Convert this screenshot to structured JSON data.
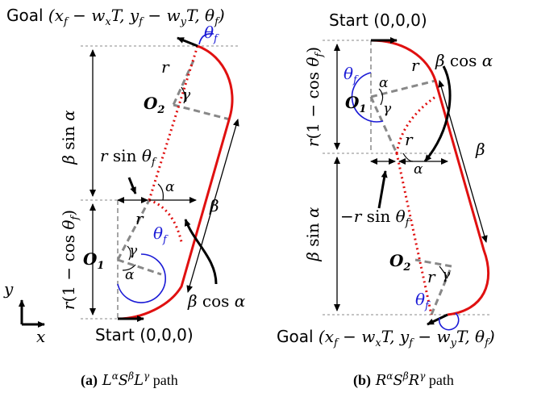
{
  "panel_a": {
    "goal_label": "Goal (x_f − w_xT, y_f − w_yT, θ_f)",
    "goal_prefix": "Goal",
    "goal_tuple": "(x",
    "start_label": "Start (0,0,0)",
    "theta_f": "θf",
    "r": "r",
    "gamma": "γ",
    "alpha": "α",
    "o2": "O",
    "o2_sub": "2",
    "o1": "O",
    "o1_sub": "1",
    "beta_sin_alpha": "β sin α",
    "r_sin_theta": "r sin θf",
    "r_one_minus_cos": "r(1 − cos θf)",
    "beta": "β",
    "beta_cos_alpha": "β cos α",
    "caption_letter": "(a)",
    "caption_text": "LαSβLγ path"
  },
  "panel_b": {
    "start_label": "Start (0,0,0)",
    "goal_label": "Goal (x_f − w_xT, y_f − w_yT, θ_f)",
    "theta_f": "θf",
    "r": "r",
    "alpha": "α",
    "gamma": "γ",
    "o1": "O",
    "o1_sub": "1",
    "o2": "O",
    "o2_sub": "2",
    "beta_cos_alpha": "β cos α",
    "r_one_minus_cos": "r(1 − cos θf)",
    "beta": "β",
    "beta_sin_alpha": "β sin α",
    "neg_r_sin_theta": "−r sin θf",
    "caption_letter": "(b)",
    "caption_text": "RαSβRγ path"
  },
  "axes": {
    "y": "y",
    "x": "x"
  },
  "colors": {
    "path": "#e01010",
    "dashed": "#888888",
    "blue": "#1a1ad6",
    "black": "#000000"
  }
}
